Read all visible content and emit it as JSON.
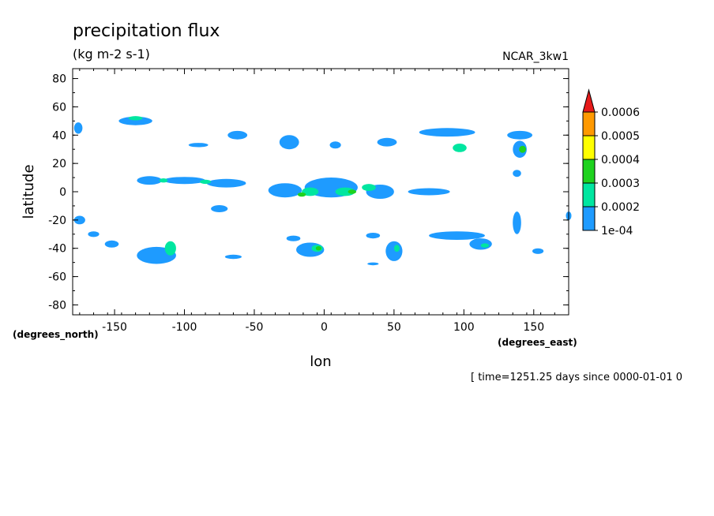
{
  "chart_data": {
    "type": "heatmap",
    "title": "precipitation flux",
    "subtitle": "(kg m-2 s-1)",
    "dataset_label": "NCAR_3kw1",
    "xlabel": "lon",
    "ylabel": "latitude",
    "x_units": "(degrees_east)",
    "y_units": "(degrees_north)",
    "footer": "[ time=1251.25 days since 0000-01-01 0",
    "xlim": [
      -180,
      175
    ],
    "ylim": [
      -87,
      87
    ],
    "x_ticks": [
      -150,
      -100,
      -50,
      0,
      50,
      100,
      150
    ],
    "y_ticks": [
      80,
      60,
      40,
      20,
      0,
      -20,
      -40,
      -60,
      -80
    ],
    "colorbar": {
      "levels": [
        "1e-04",
        "0.0002",
        "0.0003",
        "0.0004",
        "0.0005",
        "0.0006"
      ],
      "colors": [
        "#1E9BFF",
        "#00E6A0",
        "#1ED21E",
        "#FFFF00",
        "#FF9900",
        "#E61A1A"
      ],
      "extend": "max"
    },
    "cells": [
      {
        "lon": -125,
        "lat": 8,
        "w": 18,
        "h": 6,
        "level": 1
      },
      {
        "lon": -100,
        "lat": 8,
        "w": 30,
        "h": 5,
        "level": 1
      },
      {
        "lon": -70,
        "lat": 6,
        "w": 28,
        "h": 6,
        "level": 1
      },
      {
        "lon": -115,
        "lat": 8,
        "w": 6,
        "h": 3,
        "level": 2
      },
      {
        "lon": -85,
        "lat": 7,
        "w": 8,
        "h": 3,
        "level": 2
      },
      {
        "lon": -28,
        "lat": 1,
        "w": 24,
        "h": 10,
        "level": 1
      },
      {
        "lon": 5,
        "lat": 3,
        "w": 38,
        "h": 14,
        "level": 1
      },
      {
        "lon": 40,
        "lat": 0,
        "w": 20,
        "h": 10,
        "level": 1
      },
      {
        "lon": 75,
        "lat": 0,
        "w": 30,
        "h": 5,
        "level": 1
      },
      {
        "lon": -10,
        "lat": 0,
        "w": 12,
        "h": 6,
        "level": 2
      },
      {
        "lon": 15,
        "lat": 0,
        "w": 14,
        "h": 6,
        "level": 2
      },
      {
        "lon": 32,
        "lat": 3,
        "w": 10,
        "h": 5,
        "level": 2
      },
      {
        "lon": -16,
        "lat": -2,
        "w": 6,
        "h": 3,
        "level": 3
      },
      {
        "lon": 20,
        "lat": 0,
        "w": 6,
        "h": 3,
        "level": 3
      },
      {
        "lon": -75,
        "lat": -12,
        "w": 12,
        "h": 5,
        "level": 1
      },
      {
        "lon": -135,
        "lat": 50,
        "w": 24,
        "h": 6,
        "level": 1
      },
      {
        "lon": -135,
        "lat": 52,
        "w": 10,
        "h": 3,
        "level": 2
      },
      {
        "lon": -176,
        "lat": 45,
        "w": 6,
        "h": 8,
        "level": 1
      },
      {
        "lon": -62,
        "lat": 40,
        "w": 14,
        "h": 6,
        "level": 1
      },
      {
        "lon": -90,
        "lat": 33,
        "w": 14,
        "h": 3,
        "level": 1
      },
      {
        "lon": -25,
        "lat": 35,
        "w": 14,
        "h": 10,
        "level": 1
      },
      {
        "lon": 8,
        "lat": 33,
        "w": 8,
        "h": 5,
        "level": 1
      },
      {
        "lon": 45,
        "lat": 35,
        "w": 14,
        "h": 6,
        "level": 1
      },
      {
        "lon": 88,
        "lat": 42,
        "w": 40,
        "h": 6,
        "level": 1
      },
      {
        "lon": 97,
        "lat": 31,
        "w": 10,
        "h": 6,
        "level": 2
      },
      {
        "lon": 140,
        "lat": 40,
        "w": 18,
        "h": 6,
        "level": 1
      },
      {
        "lon": 140,
        "lat": 30,
        "w": 10,
        "h": 12,
        "level": 1
      },
      {
        "lon": 142,
        "lat": 30,
        "w": 5,
        "h": 5,
        "level": 3
      },
      {
        "lon": 138,
        "lat": 13,
        "w": 6,
        "h": 5,
        "level": 1
      },
      {
        "lon": 138,
        "lat": -22,
        "w": 6,
        "h": 16,
        "level": 1
      },
      {
        "lon": 175,
        "lat": -17,
        "w": 4,
        "h": 6,
        "level": 1
      },
      {
        "lon": -175,
        "lat": -20,
        "w": 8,
        "h": 6,
        "level": 1
      },
      {
        "lon": -165,
        "lat": -30,
        "w": 8,
        "h": 4,
        "level": 1
      },
      {
        "lon": -152,
        "lat": -37,
        "w": 10,
        "h": 5,
        "level": 1
      },
      {
        "lon": -120,
        "lat": -45,
        "w": 28,
        "h": 12,
        "level": 1
      },
      {
        "lon": -110,
        "lat": -40,
        "w": 8,
        "h": 10,
        "level": 2
      },
      {
        "lon": -65,
        "lat": -46,
        "w": 12,
        "h": 3,
        "level": 1
      },
      {
        "lon": -22,
        "lat": -33,
        "w": 10,
        "h": 4,
        "level": 1
      },
      {
        "lon": -10,
        "lat": -41,
        "w": 20,
        "h": 10,
        "level": 1
      },
      {
        "lon": -5,
        "lat": -40,
        "w": 8,
        "h": 5,
        "level": 2
      },
      {
        "lon": -4,
        "lat": -40,
        "w": 4,
        "h": 3,
        "level": 3
      },
      {
        "lon": 35,
        "lat": -31,
        "w": 10,
        "h": 4,
        "level": 1
      },
      {
        "lon": 50,
        "lat": -42,
        "w": 12,
        "h": 14,
        "level": 1
      },
      {
        "lon": 52,
        "lat": -40,
        "w": 4,
        "h": 5,
        "level": 2
      },
      {
        "lon": 95,
        "lat": -31,
        "w": 40,
        "h": 6,
        "level": 1
      },
      {
        "lon": 112,
        "lat": -37,
        "w": 16,
        "h": 8,
        "level": 1
      },
      {
        "lon": 115,
        "lat": -38,
        "w": 6,
        "h": 3,
        "level": 2
      },
      {
        "lon": 153,
        "lat": -42,
        "w": 8,
        "h": 4,
        "level": 1
      },
      {
        "lon": 35,
        "lat": -51,
        "w": 8,
        "h": 2,
        "level": 1
      }
    ]
  }
}
